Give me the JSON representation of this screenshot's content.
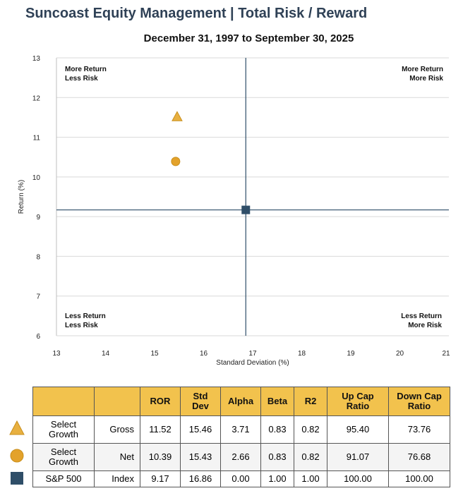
{
  "page": {
    "title": "Suncoast Equity Management | Total Risk / Reward",
    "subtitle": "December 31, 1997 to September 30, 2025"
  },
  "chart_data": {
    "type": "scatter",
    "title": "Total Risk / Reward",
    "xlabel": "Standard Deviation (%)",
    "ylabel": "Return (%)",
    "xlim": [
      13,
      21
    ],
    "ylim": [
      6,
      13
    ],
    "xticks": [
      "13",
      "14",
      "15",
      "16",
      "17",
      "18",
      "19",
      "20",
      "21"
    ],
    "yticks": [
      "6",
      "7",
      "8",
      "9",
      "10",
      "11",
      "12",
      "13"
    ],
    "crosshair": {
      "x": 16.86,
      "y": 9.17
    },
    "quadrants": {
      "top_left": [
        "More Return",
        "Less Risk"
      ],
      "top_right": [
        "More Return",
        "More Risk"
      ],
      "bottom_left": [
        "Less Return",
        "Less Risk"
      ],
      "bottom_right": [
        "Less Return",
        "More Risk"
      ]
    },
    "series": [
      {
        "name": "Select Growth Gross",
        "marker": "triangle",
        "color": "#e8b040",
        "x": 15.46,
        "y": 11.52
      },
      {
        "name": "Select Growth Net",
        "marker": "circle",
        "color": "#e3a22b",
        "x": 15.43,
        "y": 10.39
      },
      {
        "name": "S&P 500 Index",
        "marker": "square",
        "color": "#2f4e68",
        "x": 16.86,
        "y": 9.17
      }
    ]
  },
  "table": {
    "headers": [
      "ROR",
      "Std Dev",
      "Alpha",
      "Beta",
      "R2",
      "Up Cap Ratio",
      "Down Cap Ratio"
    ],
    "rows": [
      {
        "name": "Select Growth",
        "type": "Gross",
        "values": [
          "11.52",
          "15.46",
          "3.71",
          "0.83",
          "0.82",
          "95.40",
          "73.76"
        ]
      },
      {
        "name": "Select Growth",
        "type": "Net",
        "values": [
          "10.39",
          "15.43",
          "2.66",
          "0.83",
          "0.82",
          "91.07",
          "76.68"
        ]
      },
      {
        "name": "S&P 500",
        "type": "Index",
        "values": [
          "9.17",
          "16.86",
          "0.00",
          "1.00",
          "1.00",
          "100.00",
          "100.00"
        ]
      }
    ]
  },
  "colors": {
    "title": "#2f4156",
    "header_bg": "#f2c24d",
    "grid": "#d9d9d9",
    "crosshair": "#2f4e68",
    "gross": "#e8b040",
    "net": "#e3a22b",
    "index": "#2f4e68"
  }
}
